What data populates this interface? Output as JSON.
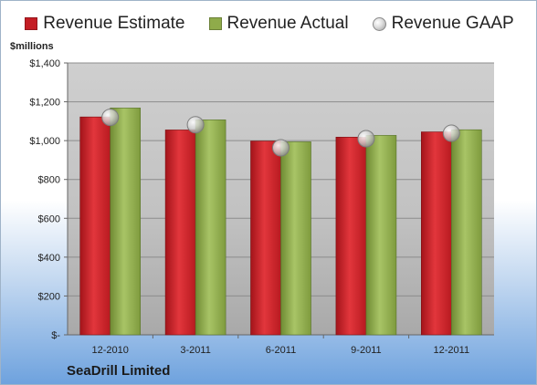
{
  "chart_data": {
    "type": "bar",
    "categories": [
      "12-2010",
      "3-2011",
      "6-2011",
      "9-2011",
      "12-2011"
    ],
    "series": [
      {
        "name": "Revenue Estimate",
        "kind": "bar",
        "color": "#c41d24",
        "values": [
          1122,
          1055,
          998,
          1018,
          1045
        ]
      },
      {
        "name": "Revenue Actual",
        "kind": "bar",
        "color": "#8fab4a",
        "values": [
          1168,
          1107,
          994,
          1027,
          1056
        ]
      },
      {
        "name": "Revenue GAAP",
        "kind": "marker",
        "color": "#bdbdbd",
        "values": [
          1120,
          1082,
          963,
          1010,
          1038
        ]
      }
    ],
    "ylabel": "$millions",
    "ylim": [
      0,
      1400
    ],
    "yticks": [
      0,
      200,
      400,
      600,
      800,
      1000,
      1200,
      1400
    ],
    "ytick_labels": [
      "$-",
      "$200",
      "$400",
      "$600",
      "$800",
      "$1,000",
      "$1,200",
      "$1,400"
    ],
    "grid": true,
    "legend_position": "top",
    "plot_background": "#b7b7b7"
  },
  "caption": "SeaDrill Limited"
}
